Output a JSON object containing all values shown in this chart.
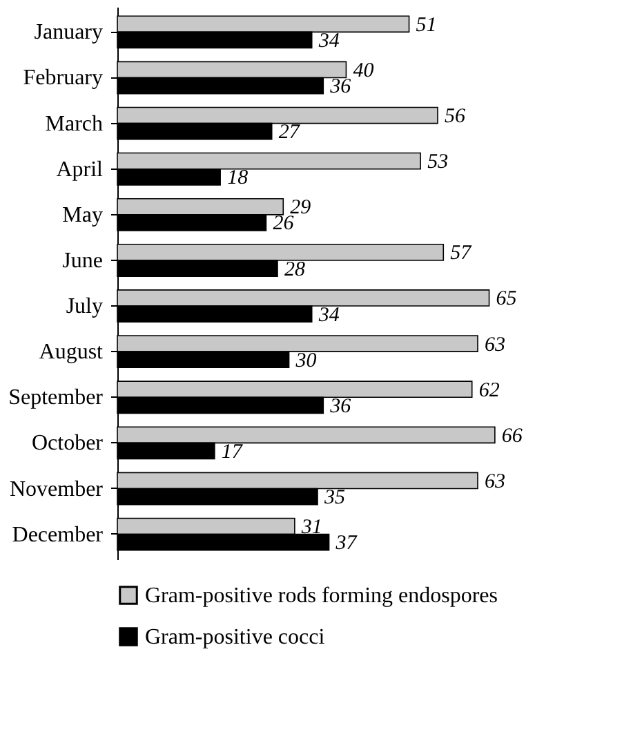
{
  "chart_data": {
    "type": "bar",
    "orientation": "horizontal",
    "data_labels": true,
    "legend": "bottom",
    "categories": [
      "January",
      "February",
      "March",
      "April",
      "May",
      "June",
      "July",
      "August",
      "September",
      "October",
      "November",
      "December"
    ],
    "series": [
      {
        "name": "Gram-positive rods forming endospores",
        "color": "#c8c8c8",
        "values": [
          51,
          40,
          56,
          53,
          29,
          57,
          65,
          63,
          62,
          66,
          63,
          31
        ]
      },
      {
        "name": "Gram-positive cocci",
        "color": "#000000",
        "values": [
          34,
          36,
          27,
          18,
          26,
          28,
          34,
          30,
          36,
          17,
          35,
          37
        ]
      }
    ]
  }
}
